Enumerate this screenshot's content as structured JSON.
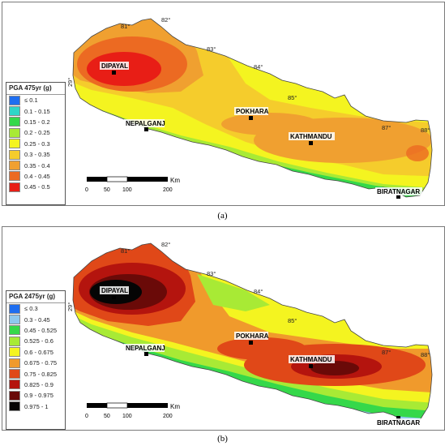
{
  "panels": [
    {
      "id": "a",
      "caption": "(a)",
      "legend_title": "PGA 475yr (g)",
      "legend": [
        {
          "label": "≤ 0.1",
          "color": "#1e6ef0"
        },
        {
          "label": "0.1 - 0.15",
          "color": "#2fd6c8"
        },
        {
          "label": "0.15 - 0.2",
          "color": "#35d84a"
        },
        {
          "label": "0.2 - 0.25",
          "color": "#a8ea35"
        },
        {
          "label": "0.25 - 0.3",
          "color": "#f4f420"
        },
        {
          "label": "0.3 - 0.35",
          "color": "#f5cc2c"
        },
        {
          "label": "0.35 - 0.4",
          "color": "#f0a030"
        },
        {
          "label": "0.4 - 0.45",
          "color": "#ec6a22"
        },
        {
          "label": "0.45 - 0.5",
          "color": "#e81e16"
        }
      ]
    },
    {
      "id": "b",
      "caption": "(b)",
      "legend_title": "PGA 2475yr (g)",
      "legend": [
        {
          "label": "≤ 0.3",
          "color": "#1e6ef0"
        },
        {
          "label": "0.3 - 0.45",
          "color": "#8ec8ee"
        },
        {
          "label": "0.45 - 0.525",
          "color": "#35d84a"
        },
        {
          "label": "0.525 - 0.6",
          "color": "#a8ea35"
        },
        {
          "label": "0.6 - 0.675",
          "color": "#f4f420"
        },
        {
          "label": "0.675 - 0.75",
          "color": "#f09a2c"
        },
        {
          "label": "0.75 - 0.825",
          "color": "#e04818"
        },
        {
          "label": "0.825 - 0.9",
          "color": "#b4140e"
        },
        {
          "label": "0.9 - 0.975",
          "color": "#6a0a08"
        },
        {
          "label": "0.975 - 1",
          "color": "#050505"
        }
      ]
    }
  ],
  "cities": [
    "DIPAYAL",
    "NEPALGANJ",
    "POKHARA",
    "KATHMANDU",
    "BIRATNAGAR"
  ],
  "longitude_ticks": [
    "81°",
    "82°",
    "83°",
    "84°",
    "85°",
    "87°",
    "88°"
  ],
  "latitude_tick": "29°",
  "scale_bar": {
    "ticks": [
      "0",
      "50",
      "100",
      "200"
    ],
    "unit": "Km"
  }
}
